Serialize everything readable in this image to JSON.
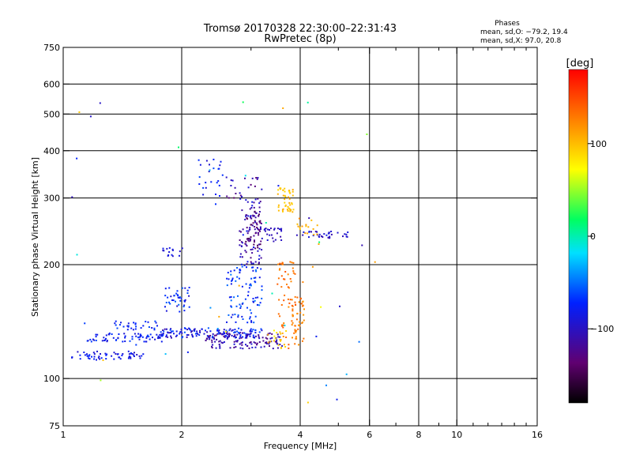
{
  "chart_data": {
    "type": "scatter",
    "title": "Tromsø 20170328 22:30:00–22:31:43",
    "subtitle": "RwPretec (8p)",
    "stats": {
      "heading": "Phases",
      "line1": "mean, sd,O: −79.2, 19.4",
      "line2": "mean, sd,X:  97.0, 20.8"
    },
    "xlabel": "Frequency [MHz]",
    "ylabel": "Stationary phase Virtual Height [km]",
    "x_scale": "log",
    "y_scale": "log",
    "xlim": [
      1,
      16
    ],
    "ylim": [
      75,
      750
    ],
    "xticks": [
      1,
      2,
      4,
      6,
      8,
      10,
      16
    ],
    "xtick_labels": [
      "1",
      "2",
      "4",
      "6",
      "8",
      "10",
      "16"
    ],
    "xminor": [
      3,
      5,
      7,
      9,
      11,
      12,
      13,
      14,
      15
    ],
    "yticks": [
      75,
      100,
      200,
      300,
      400,
      500,
      600,
      750
    ],
    "ytick_labels": [
      "75",
      "100",
      "200",
      "300",
      "400",
      "500",
      "600",
      "750"
    ],
    "vgrid": [
      2,
      4,
      6,
      8,
      10
    ],
    "hgrid": [
      100,
      200,
      300,
      400,
      500,
      600
    ],
    "grid": true,
    "colorbar": {
      "label": "[deg]",
      "min": -180,
      "max": 180,
      "ticks": [
        100,
        0,
        -100
      ],
      "tick_labels": [
        "100",
        "0",
        "−100"
      ]
    },
    "clusters": [
      {
        "xmin": 1.05,
        "xmax": 1.6,
        "hmin": 112,
        "hmax": 118,
        "phase_min": -100,
        "phase_max": -70,
        "n": 60
      },
      {
        "xmin": 1.15,
        "xmax": 1.8,
        "hmin": 125,
        "hmax": 132,
        "phase_min": -95,
        "phase_max": -60,
        "n": 70
      },
      {
        "xmin": 1.35,
        "xmax": 1.75,
        "hmin": 134,
        "hmax": 142,
        "phase_min": -90,
        "phase_max": -60,
        "n": 30
      },
      {
        "xmin": 1.75,
        "xmax": 3.2,
        "hmin": 128,
        "hmax": 136,
        "phase_min": -110,
        "phase_max": -55,
        "n": 140
      },
      {
        "xmin": 1.8,
        "xmax": 2.1,
        "hmin": 150,
        "hmax": 175,
        "phase_min": -100,
        "phase_max": -50,
        "n": 40
      },
      {
        "xmin": 2.3,
        "xmax": 3.6,
        "hmin": 120,
        "hmax": 132,
        "phase_min": -130,
        "phase_max": -90,
        "n": 120
      },
      {
        "xmin": 2.6,
        "xmax": 3.2,
        "hmin": 140,
        "hmax": 200,
        "phase_min": -90,
        "phase_max": -45,
        "n": 90
      },
      {
        "xmin": 2.8,
        "xmax": 3.2,
        "hmin": 200,
        "hmax": 300,
        "phase_min": -130,
        "phase_max": -80,
        "n": 90
      },
      {
        "xmin": 2.9,
        "xmax": 3.2,
        "hmin": 220,
        "hmax": 280,
        "phase_min": -150,
        "phase_max": -120,
        "n": 40
      },
      {
        "xmin": 2.2,
        "xmax": 2.6,
        "hmin": 300,
        "hmax": 380,
        "phase_min": -100,
        "phase_max": -60,
        "n": 25
      },
      {
        "xmin": 2.6,
        "xmax": 3.3,
        "hmin": 300,
        "hmax": 340,
        "phase_min": -140,
        "phase_max": -90,
        "n": 20
      },
      {
        "xmin": 3.5,
        "xmax": 3.85,
        "hmin": 275,
        "hmax": 320,
        "phase_min": 85,
        "phase_max": 110,
        "n": 45
      },
      {
        "xmin": 3.5,
        "xmax": 3.9,
        "hmin": 120,
        "hmax": 205,
        "phase_min": 120,
        "phase_max": 145,
        "n": 60
      },
      {
        "xmin": 3.8,
        "xmax": 4.1,
        "hmin": 120,
        "hmax": 165,
        "phase_min": 115,
        "phase_max": 140,
        "n": 40
      },
      {
        "xmin": 3.3,
        "xmax": 3.7,
        "hmin": 120,
        "hmax": 135,
        "phase_min": 75,
        "phase_max": 110,
        "n": 20
      },
      {
        "xmin": 3.2,
        "xmax": 3.6,
        "hmin": 230,
        "hmax": 250,
        "phase_min": -110,
        "phase_max": -90,
        "n": 25
      },
      {
        "xmin": 3.9,
        "xmax": 5.3,
        "hmin": 235,
        "hmax": 245,
        "phase_min": -110,
        "phase_max": -80,
        "n": 35
      },
      {
        "xmin": 3.9,
        "xmax": 4.5,
        "hmin": 240,
        "hmax": 262,
        "phase_min": 95,
        "phase_max": 115,
        "n": 15
      },
      {
        "xmin": 1.75,
        "xmax": 2.05,
        "hmin": 210,
        "hmax": 222,
        "phase_min": -100,
        "phase_max": -80,
        "n": 15
      },
      {
        "xmin": 1.05,
        "xmax": 6.5,
        "hmin": 80,
        "hmax": 600,
        "phase_min": -110,
        "phase_max": 130,
        "n": 45
      }
    ]
  }
}
